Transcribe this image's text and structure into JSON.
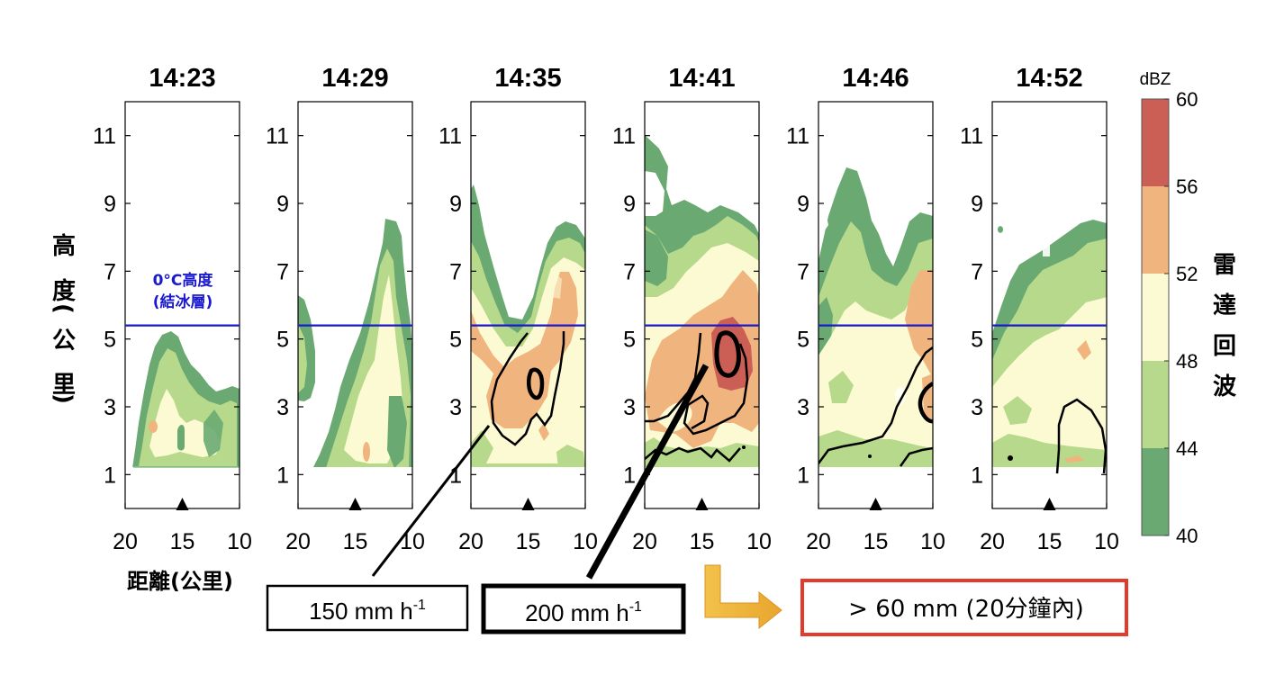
{
  "chart_data": {
    "type": "heatmap",
    "panel_times": [
      "14:23",
      "14:29",
      "14:35",
      "14:41",
      "14:46",
      "14:52"
    ],
    "y_axis": {
      "label": "高度(公里)",
      "ylim": [
        0,
        12
      ],
      "ticks": [
        1,
        3,
        5,
        7,
        9,
        11
      ]
    },
    "x_axis": {
      "label": "距離(公里)",
      "xlim": [
        20,
        10
      ],
      "ticks": [
        20,
        15,
        10
      ]
    },
    "freezing_level": {
      "label_line1": "0°C高度",
      "label_line2": "(結冰層)",
      "height_km": 5.4,
      "color": "#1a1acc"
    },
    "colorbar": {
      "unit": "dBZ",
      "title": "雷達回波",
      "levels": [
        40,
        44,
        48,
        52,
        56,
        60
      ],
      "colors": [
        "#6aaa72",
        "#b7d98b",
        "#fcfad2",
        "#f0b47f",
        "#cc5f55"
      ]
    },
    "marker_distance_km": 15,
    "annotations": {
      "rain_rate_150": {
        "value": "150 mm h",
        "superscript": "-1"
      },
      "rain_rate_200": {
        "value": "200 mm h",
        "superscript": "-1"
      },
      "accumulation": "> 60 mm  (20分鐘內)"
    },
    "arrow_color": "#f0b43a",
    "accumulation_box_color": "#e23b2e"
  }
}
